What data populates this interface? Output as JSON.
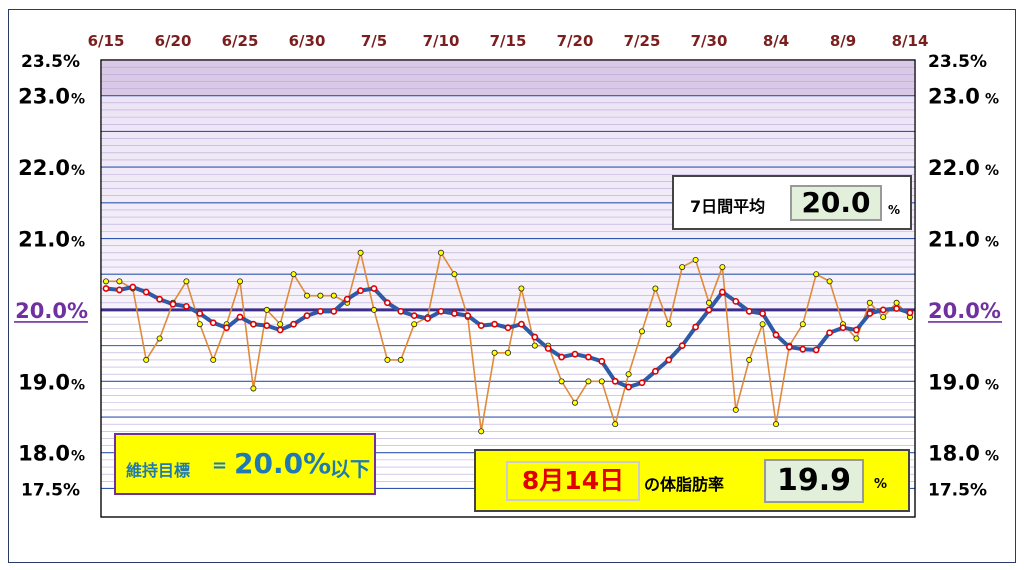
{
  "colors": {
    "daily_line": "#e08a3a",
    "daily_marker": "#ffff00",
    "avg_line": "#2e5aa6",
    "avg_marker": "#e00000",
    "target_line": "#3c2d8c",
    "band_top": "#d9c8e6",
    "grid_major": "#3057b0",
    "grid_minor": "#b7a9d9"
  },
  "avg_panel": {
    "label": "7日間平均",
    "value": "20.0",
    "unit": "%"
  },
  "target_panel": {
    "label": "維持目標",
    "eq": "=",
    "value": "20.0%",
    "suffix": "以下"
  },
  "today_panel": {
    "date": "8月14日",
    "label": "の体脂肪率",
    "value": "19.9",
    "unit": "%"
  },
  "chart_data": {
    "type": "line",
    "x_ticks": [
      "6/15",
      "6/20",
      "6/25",
      "6/30",
      "7/5",
      "7/10",
      "7/15",
      "7/20",
      "7/25",
      "7/30",
      "8/4",
      "8/9",
      "8/14"
    ],
    "y_ticks_left": [
      {
        "v": 23.5,
        "label": "23.5%",
        "style": "small"
      },
      {
        "v": 23.0,
        "label": "23.0",
        "style": "big"
      },
      {
        "v": 22.0,
        "label": "22.0",
        "style": "big"
      },
      {
        "v": 21.0,
        "label": "21.0",
        "style": "big"
      },
      {
        "v": 20.0,
        "label": "20.0%",
        "style": "ref"
      },
      {
        "v": 19.0,
        "label": "19.0",
        "style": "big"
      },
      {
        "v": 18.0,
        "label": "18.0",
        "style": "big"
      },
      {
        "v": 17.5,
        "label": "17.5%",
        "style": "small"
      }
    ],
    "y_ticks_right": [
      {
        "v": 23.5,
        "label": "23.5%",
        "style": "small"
      },
      {
        "v": 23.0,
        "label": "23.0",
        "style": "big"
      },
      {
        "v": 22.0,
        "label": "22.0",
        "style": "big"
      },
      {
        "v": 21.0,
        "label": "21.0",
        "style": "big"
      },
      {
        "v": 20.0,
        "label": "20.0%",
        "style": "ref"
      },
      {
        "v": 19.0,
        "label": "19.0",
        "style": "big"
      },
      {
        "v": 18.0,
        "label": "18.0",
        "style": "big"
      },
      {
        "v": 17.5,
        "label": "17.5%",
        "style": "small"
      }
    ],
    "ylim": [
      17.1,
      23.5
    ],
    "target": 20.0,
    "shaded_above": 23.0,
    "series": [
      {
        "values": [
          20.4,
          20.4,
          20.3,
          19.3,
          19.6,
          20.1,
          20.4,
          19.8,
          19.3,
          19.8,
          20.4,
          18.9,
          20.0,
          19.8,
          20.5,
          20.2,
          20.2,
          20.2,
          20.1,
          20.8,
          20.0,
          19.3,
          19.3,
          19.8,
          19.9,
          20.8,
          20.5,
          19.9,
          18.3,
          19.4,
          19.4,
          20.3,
          19.5,
          19.5,
          19.0,
          18.7,
          19.0,
          19.0,
          18.4,
          19.1,
          19.7,
          20.3,
          19.8,
          20.6,
          20.7,
          20.1,
          20.6,
          18.6,
          19.3,
          19.8,
          18.4,
          19.5,
          19.8,
          20.5,
          20.4,
          19.8,
          19.6,
          20.1,
          19.9,
          20.1,
          19.9
        ]
      },
      {
        "values": [
          20.3,
          20.28,
          20.32,
          20.25,
          20.15,
          20.08,
          20.05,
          19.95,
          19.82,
          19.75,
          19.9,
          19.8,
          19.78,
          19.72,
          19.8,
          19.92,
          19.98,
          19.98,
          20.15,
          20.27,
          20.3,
          20.1,
          19.98,
          19.92,
          19.88,
          19.98,
          19.95,
          19.92,
          19.78,
          19.8,
          19.75,
          19.8,
          19.62,
          19.46,
          19.34,
          19.38,
          19.34,
          19.28,
          19.0,
          18.92,
          18.98,
          19.14,
          19.3,
          19.5,
          19.76,
          20.0,
          20.25,
          20.12,
          19.98,
          19.95,
          19.65,
          19.48,
          19.45,
          19.44,
          19.68,
          19.75,
          19.72,
          19.95,
          20.0,
          20.02,
          19.96
        ]
      }
    ]
  }
}
